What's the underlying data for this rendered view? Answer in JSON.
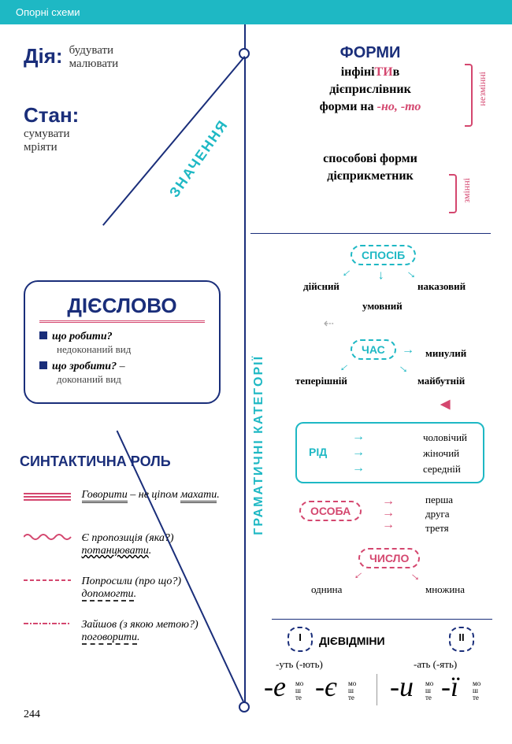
{
  "header": {
    "title": "Опорні схеми"
  },
  "page_number": "244",
  "colors": {
    "teal": "#1eb8c4",
    "navy": "#1a2e7a",
    "pink": "#d4476f",
    "text": "#222"
  },
  "znachennia": {
    "label": "ЗНАЧЕННЯ",
    "dia": {
      "label": "Дія:",
      "examples": [
        "будувати",
        "малювати"
      ]
    },
    "stan": {
      "label": "Стан:",
      "examples": [
        "сумувати",
        "мріяти"
      ]
    }
  },
  "formy": {
    "title": "ФОРМИ",
    "nezminni": {
      "label": "незмінні",
      "lines": [
        {
          "pre": "інфіні",
          "hi": "ТИ",
          "post": "в"
        },
        {
          "text": "дієприслівник"
        },
        {
          "pre": "форми на ",
          "hi_it": "-но, -то"
        }
      ]
    },
    "zminni": {
      "label": "змінні",
      "lines": [
        {
          "text": "способові форми"
        },
        {
          "text": "дієприкметник"
        }
      ]
    }
  },
  "mainword": {
    "word": "ДІЄСЛОВО",
    "q1": {
      "q": "що робити?",
      "note": "недоконаний вид"
    },
    "q2": {
      "q": "що зробити?",
      "note": "доконаний вид",
      "dash": "–"
    }
  },
  "gram": {
    "label": "ГРАМАТИЧНІ КАТЕГОРІЇ",
    "sposib": {
      "label": "СПОСІБ",
      "items": [
        "дійсний",
        "наказовий",
        "умовний"
      ]
    },
    "chas": {
      "label": "ЧАС",
      "items": [
        "теперішній",
        "минулий",
        "майбутній"
      ]
    },
    "rid": {
      "label": "РІД",
      "items": [
        "чоловічий",
        "жіночий",
        "середній"
      ]
    },
    "osoba": {
      "label": "ОСОБА",
      "items": [
        "перша",
        "друга",
        "третя"
      ]
    },
    "chyslo": {
      "label": "ЧИСЛО",
      "items": [
        "однина",
        "множина"
      ]
    }
  },
  "synt": {
    "title": "СИНТАКТИЧНА РОЛЬ",
    "rows": [
      {
        "text_a": "Говорити",
        "text_b": " – не ціпом ",
        "text_c": "махати",
        "text_d": "."
      },
      {
        "text_a": "Є пропозиція (яка?) ",
        "text_c": "потанцювати",
        "text_d": "."
      },
      {
        "text_a": "Попросили (про що?) ",
        "text_c": "допомогти",
        "text_d": "."
      },
      {
        "text_a": "Зайшов (з якою метою?) ",
        "text_c": "поговорити",
        "text_d": "."
      }
    ]
  },
  "conj": {
    "title": "ДІЄВІДМІНИ",
    "groups": [
      {
        "num": "I",
        "third": "-уть (-ють)",
        "vowels": [
          "-е",
          "-є"
        ],
        "suffix": "мо\nш\nте"
      },
      {
        "num": "II",
        "third": "-ать (-ять)",
        "vowels": [
          "-и",
          "-ї"
        ],
        "suffix": "мо\nш\nте"
      }
    ]
  }
}
